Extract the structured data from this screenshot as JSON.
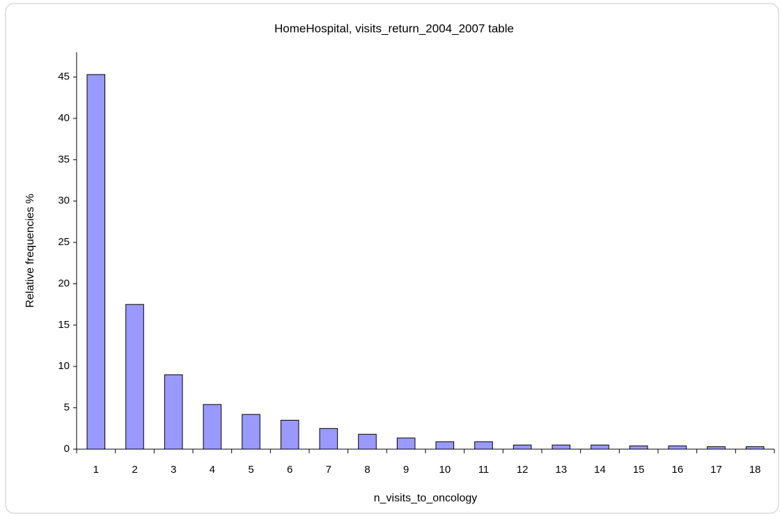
{
  "chart_data": {
    "type": "bar",
    "title": "HomeHospital, visits_return_2004_2007 table",
    "x_label": "n_visits_to_oncology",
    "y_label": "Relative frequencies %",
    "categories": [
      "1",
      "2",
      "3",
      "4",
      "5",
      "6",
      "7",
      "8",
      "9",
      "10",
      "11",
      "12",
      "13",
      "14",
      "15",
      "16",
      "17",
      "18"
    ],
    "values": [
      45.3,
      17.5,
      9.0,
      5.4,
      4.2,
      3.5,
      2.5,
      1.8,
      1.35,
      0.9,
      0.9,
      0.5,
      0.5,
      0.5,
      0.4,
      0.4,
      0.3,
      0.3
    ],
    "color": "#9999ff",
    "ylim": [
      0,
      48
    ],
    "yticks": [
      0,
      5,
      10,
      15,
      20,
      25,
      30,
      35,
      40,
      45
    ],
    "grid": false
  }
}
